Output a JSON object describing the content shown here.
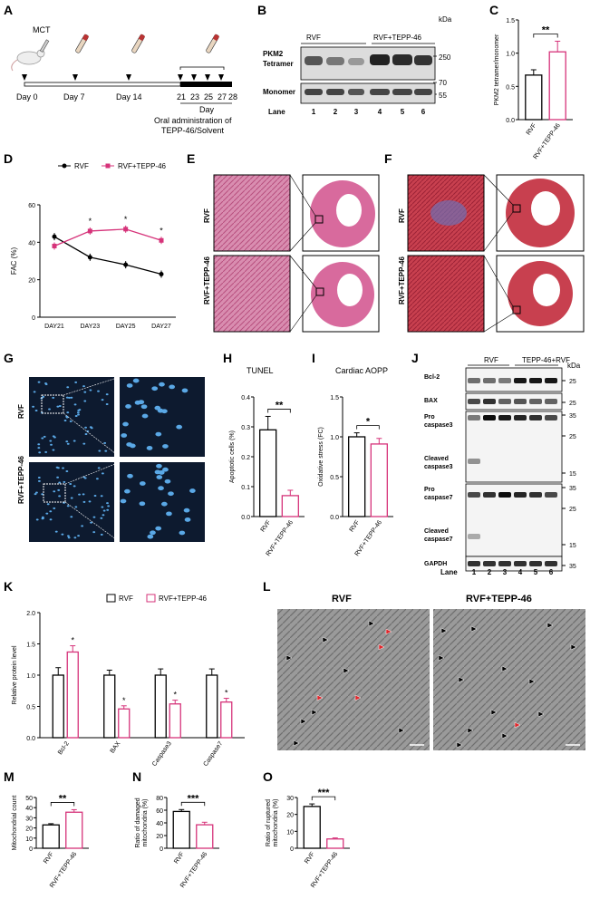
{
  "colors": {
    "rvf": "#000000",
    "tepp": "#d6337a",
    "blot_bg": "#d9d9d9",
    "band": "#333333",
    "he": "#d77fa8",
    "masson": "#c63b4f",
    "tunel_bg": "#0c1a2e",
    "nuclei": "#5aa8e6"
  },
  "panelA": {
    "label": "A",
    "mct": "MCT",
    "days": [
      "Day 0",
      "Day 7",
      "Day 14"
    ],
    "late_days": [
      "21",
      "23",
      "25",
      "27",
      "28"
    ],
    "day_label": "Day",
    "oral_line1": "Oral administration of",
    "oral_line2": "TEPP-46/Solvent"
  },
  "panelB": {
    "label": "B",
    "kda": "kDa",
    "pkm2": "PKM2",
    "tetramer": "Tetramer",
    "monomer": "Monomer",
    "group1": "RVF",
    "group2": "RVF+TEPP-46",
    "lane_label": "Lane",
    "lanes": [
      "1",
      "2",
      "3",
      "4",
      "5",
      "6"
    ],
    "markers": [
      "250",
      "70",
      "55"
    ]
  },
  "panelC": {
    "label": "C",
    "ylabel": "PKM2 tetramer/monomer",
    "sig": "**",
    "categories": [
      "RVF",
      "RVF+TEPP-46"
    ],
    "values": [
      0.67,
      1.02
    ],
    "errors": [
      0.08,
      0.16
    ],
    "yticks": [
      "0.0",
      "0.5",
      "1.0",
      "1.5"
    ]
  },
  "panelD": {
    "label": "D",
    "ylabel": "FAC  (%)",
    "legend": [
      "RVF",
      "RVF+TEPP-46"
    ],
    "x": [
      "DAY21",
      "DAY23",
      "DAY25",
      "DAY27"
    ],
    "rvf": [
      43,
      32,
      28,
      23
    ],
    "tepp": [
      38,
      46,
      47,
      41
    ],
    "sig": [
      "*",
      "*",
      "*"
    ],
    "yticks": [
      "0",
      "20",
      "40",
      "60"
    ]
  },
  "panelE": {
    "label": "E",
    "rows": [
      "RVF",
      "RVF+TEPP-46"
    ]
  },
  "panelF": {
    "label": "F",
    "rows": [
      "RVF",
      "RVF+TEPP-46"
    ]
  },
  "panelG": {
    "label": "G",
    "rows": [
      "RVF",
      "RVF+TEPP-46"
    ]
  },
  "panelH": {
    "label": "H",
    "title": "TUNEL",
    "ylabel": "Apoptotic cells (%)",
    "sig": "**",
    "categories": [
      "RVF",
      "RVF+TEPP-46"
    ],
    "values": [
      0.29,
      0.07
    ],
    "errors": [
      0.045,
      0.018
    ],
    "yticks": [
      "0.0",
      "0.1",
      "0.2",
      "0.3",
      "0.4"
    ]
  },
  "panelI": {
    "label": "I",
    "title": "Cardiac AOPP",
    "ylabel": "Oxidative stress (FC)",
    "sig": "*",
    "categories": [
      "RVF",
      "RVF+TEPP-46"
    ],
    "values": [
      1.0,
      0.91
    ],
    "errors": [
      0.05,
      0.07
    ],
    "yticks": [
      "0.0",
      "0.5",
      "1.0",
      "1.5"
    ]
  },
  "panelJ": {
    "label": "J",
    "kda": "kDa",
    "group1": "RVF",
    "group2": "TEPP-46+RVF",
    "rows": [
      "Bcl-2",
      "BAX",
      "Pro",
      "caspase3",
      "Cleaved",
      "caspase3",
      "Pro",
      "caspase7",
      "Cleaved",
      "caspase7",
      "GAPDH"
    ],
    "markers": [
      "25",
      "25",
      "35",
      "25",
      "15",
      "35",
      "25",
      "15",
      "35"
    ],
    "lane_label": "Lane",
    "lanes": [
      "1",
      "2",
      "3",
      "4",
      "5",
      "6"
    ]
  },
  "panelK": {
    "label": "K",
    "ylabel": "Relative protein level",
    "legend": [
      "RVF",
      "RVF+TEPP-46"
    ],
    "categories": [
      "Bcl-2",
      "BAX",
      "Caspase3",
      "Caspase7"
    ],
    "rvf": [
      1.0,
      1.0,
      1.0,
      1.0
    ],
    "tepp": [
      1.37,
      0.46,
      0.54,
      0.57
    ],
    "rvf_err": [
      0.12,
      0.08,
      0.1,
      0.1
    ],
    "tepp_err": [
      0.1,
      0.05,
      0.06,
      0.06
    ],
    "sig": [
      "*",
      "*",
      "*",
      "*"
    ],
    "yticks": [
      "0.0",
      "0.5",
      "1.0",
      "1.5",
      "2.0"
    ]
  },
  "panelL": {
    "label": "L",
    "left_title": "RVF",
    "right_title": "RVF+TEPP-46"
  },
  "panelM": {
    "label": "M",
    "ylabel": "Mitochondrial count",
    "sig": "**",
    "categories": [
      "RVF",
      "RVF+TEPP-46"
    ],
    "values": [
      23,
      35.5
    ],
    "errors": [
      1.2,
      2.5
    ],
    "yticks": [
      "0",
      "10",
      "20",
      "30",
      "40",
      "50"
    ]
  },
  "panelN": {
    "label": "N",
    "ylabel1": "Ratio of damaged",
    "ylabel2": "mitochondria (%)",
    "sig": "***",
    "categories": [
      "RVF",
      "RVF+TEPP-46"
    ],
    "values": [
      58,
      37
    ],
    "errors": [
      3,
      4
    ],
    "yticks": [
      "0",
      "20",
      "40",
      "60",
      "80"
    ]
  },
  "panelO": {
    "label": "O",
    "ylabel1": "Ratio of ruptured",
    "ylabel2": "mitochondria (%)",
    "sig": "***",
    "categories": [
      "RVF",
      "RVF+TEPP-46"
    ],
    "values": [
      24.7,
      5.5
    ],
    "errors": [
      1.5,
      0.6
    ],
    "yticks": [
      "0",
      "10",
      "20",
      "30"
    ]
  },
  "chart_data": [
    {
      "type": "bar",
      "panel": "C",
      "categories": [
        "RVF",
        "RVF+TEPP-46"
      ],
      "values": [
        0.67,
        1.02
      ],
      "ylabel": "PKM2 tetramer/monomer",
      "ylim": [
        0,
        1.5
      ]
    },
    {
      "type": "line",
      "panel": "D",
      "x": [
        "DAY21",
        "DAY23",
        "DAY25",
        "DAY27"
      ],
      "series": [
        {
          "name": "RVF",
          "values": [
            43,
            32,
            28,
            23
          ]
        },
        {
          "name": "RVF+TEPP-46",
          "values": [
            38,
            46,
            47,
            41
          ]
        }
      ],
      "ylabel": "FAC  (%)",
      "ylim": [
        0,
        60
      ]
    },
    {
      "type": "bar",
      "panel": "H",
      "title": "TUNEL",
      "categories": [
        "RVF",
        "RVF+TEPP-46"
      ],
      "values": [
        0.29,
        0.07
      ],
      "ylabel": "Apoptotic cells (%)",
      "ylim": [
        0,
        0.4
      ]
    },
    {
      "type": "bar",
      "panel": "I",
      "title": "Cardiac AOPP",
      "categories": [
        "RVF",
        "RVF+TEPP-46"
      ],
      "values": [
        1.0,
        0.91
      ],
      "ylabel": "Oxidative stress (FC)",
      "ylim": [
        0,
        1.5
      ]
    },
    {
      "type": "bar",
      "panel": "K",
      "categories": [
        "Bcl-2",
        "BAX",
        "Caspase3",
        "Caspase7"
      ],
      "series": [
        {
          "name": "RVF",
          "values": [
            1.0,
            1.0,
            1.0,
            1.0
          ]
        },
        {
          "name": "RVF+TEPP-46",
          "values": [
            1.37,
            0.46,
            0.54,
            0.57
          ]
        }
      ],
      "ylabel": "Relative protein level",
      "ylim": [
        0,
        2.0
      ]
    },
    {
      "type": "bar",
      "panel": "M",
      "categories": [
        "RVF",
        "RVF+TEPP-46"
      ],
      "values": [
        23,
        35.5
      ],
      "ylabel": "Mitochondrial count",
      "ylim": [
        0,
        50
      ]
    },
    {
      "type": "bar",
      "panel": "N",
      "categories": [
        "RVF",
        "RVF+TEPP-46"
      ],
      "values": [
        58,
        37
      ],
      "ylabel": "Ratio of damaged mitochondria (%)",
      "ylim": [
        0,
        80
      ]
    },
    {
      "type": "bar",
      "panel": "O",
      "categories": [
        "RVF",
        "RVF+TEPP-46"
      ],
      "values": [
        24.7,
        5.5
      ],
      "ylabel": "Ratio of ruptured mitochondria (%)",
      "ylim": [
        0,
        30
      ]
    }
  ]
}
